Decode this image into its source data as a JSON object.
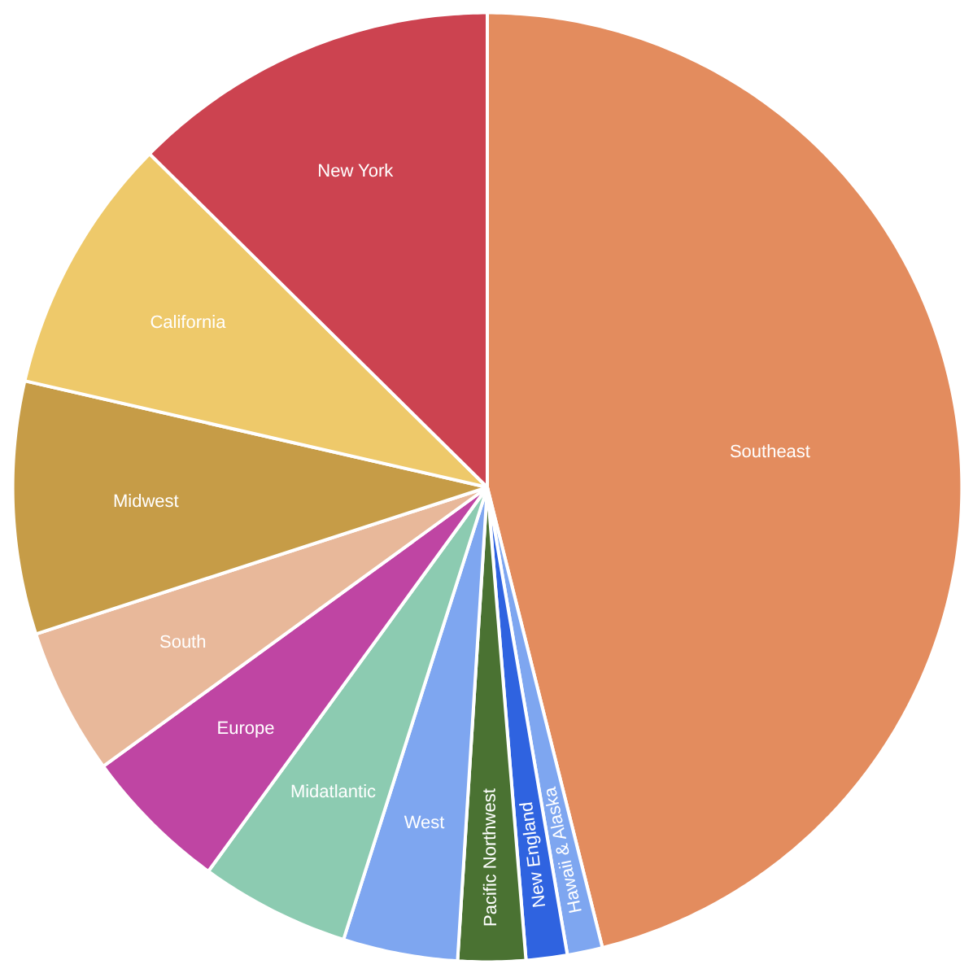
{
  "chart_data": {
    "type": "pie",
    "categories": [
      "Southeast",
      "Hawaii & Alaska",
      "New England",
      "Pacific Northwest",
      "West",
      "Midatlantic",
      "Europe",
      "South",
      "Midwest",
      "California",
      "New York"
    ],
    "values": [
      46.1,
      1.2,
      1.4,
      2.3,
      3.9,
      5.1,
      5.0,
      5.0,
      8.6,
      8.8,
      12.6
    ],
    "colors": [
      "#e38c5e",
      "#7ea6f0",
      "#2f63e0",
      "#4a7232",
      "#7ea6f0",
      "#8ccbb1",
      "#bf45a3",
      "#e8b89a",
      "#c69c47",
      "#eec96a",
      "#cc4350"
    ]
  }
}
